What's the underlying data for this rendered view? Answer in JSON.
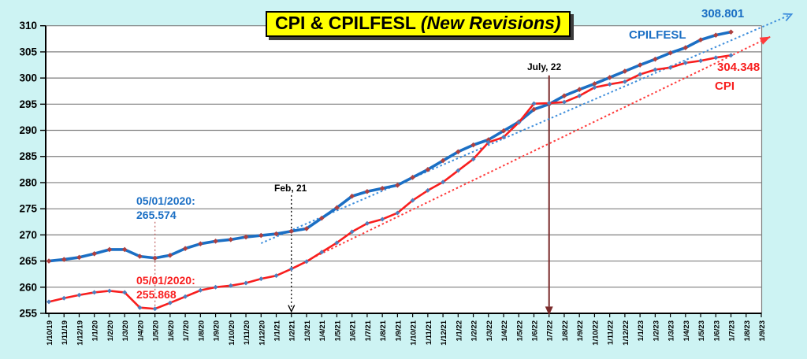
{
  "background_color": "#CDF3F3",
  "title": {
    "prefix": "CPI & CPILFESL ",
    "italic": "(New Revisions)",
    "suffix": "",
    "bg_color": "#FFFF00",
    "text_color": "#000000"
  },
  "labels": {
    "cpilfesl_series_label": "CPILFESL",
    "cpilfesl_end_value": "308.801",
    "cpi_series_label": "CPI",
    "cpi_end_value": "304.348",
    "blue_annotation_line1": "05/01/2020:",
    "blue_annotation_line2": "265.574",
    "red_annotation_line1": "05/01/2020:",
    "red_annotation_line2": "255.868",
    "feb21": "Feb, 21",
    "july22": "July, 22"
  },
  "chart_data": {
    "type": "line",
    "title": "CPI & CPILFESL (New Revisions)",
    "ylim": [
      255,
      310
    ],
    "y_ticks": [
      255,
      260,
      265,
      270,
      275,
      280,
      285,
      290,
      295,
      300,
      305,
      310
    ],
    "grid": true,
    "plot_bg": "#FFFFFF",
    "grid_color": "#7f7f7f",
    "axis_color": "#000000",
    "x_tick_labels": [
      "1/10/19",
      "1/11/19",
      "1/12/19",
      "1/1/20",
      "1/2/20",
      "1/3/20",
      "1/4/20",
      "1/5/20",
      "1/6/20",
      "1/7/20",
      "1/8/20",
      "1/9/20",
      "1/10/20",
      "1/11/20",
      "1/12/20",
      "1/1/21",
      "1/2/21",
      "1/3/21",
      "1/4/21",
      "1/5/21",
      "1/6/21",
      "1/7/21",
      "1/8/21",
      "1/9/21",
      "1/10/21",
      "1/11/21",
      "1/12/21",
      "1/1/22",
      "1/2/22",
      "1/3/22",
      "1/4/22",
      "1/5/22",
      "1/6/22",
      "1/7/22",
      "1/8/22",
      "1/9/22",
      "1/10/22",
      "1/11/22",
      "1/12/22",
      "1/1/23",
      "1/2/23",
      "1/3/23",
      "1/4/23",
      "1/5/23",
      "1/6/23",
      "1/7/23",
      "1/8/23",
      "1/9/23"
    ],
    "series": [
      {
        "name": "CPILFESL",
        "color": "#1B6FC4",
        "line_width": 3.6,
        "marker_color": "#AE4040",
        "marker_size": 3.3,
        "values": [
          265.0,
          265.3,
          265.7,
          266.4,
          267.2,
          267.2,
          265.9,
          265.574,
          266.1,
          267.4,
          268.3,
          268.8,
          269.1,
          269.6,
          269.9,
          270.2,
          270.7,
          271.2,
          273.2,
          275.2,
          277.4,
          278.3,
          278.9,
          279.5,
          281.0,
          282.5,
          284.2,
          285.9,
          287.2,
          288.2,
          289.9,
          291.6,
          294.0,
          295.0,
          296.6,
          297.8,
          298.9,
          300.1,
          301.3,
          302.5,
          303.6,
          304.8,
          305.8,
          307.3,
          308.2,
          308.801
        ]
      },
      {
        "name": "CPI",
        "color": "#F81E1E",
        "line_width": 2.6,
        "marker_color": "#4E7FBE",
        "marker_size": 3.0,
        "values": [
          257.2,
          257.9,
          258.5,
          259.0,
          259.3,
          259.0,
          256.1,
          255.868,
          257.0,
          258.2,
          259.4,
          260.0,
          260.3,
          260.8,
          261.6,
          262.2,
          263.5,
          264.9,
          266.7,
          268.5,
          270.6,
          272.2,
          273.0,
          274.2,
          276.6,
          278.5,
          280.1,
          282.3,
          284.5,
          287.7,
          288.7,
          291.5,
          295.1,
          295.2,
          295.4,
          296.6,
          298.2,
          298.8,
          299.3,
          300.7,
          301.6,
          302.0,
          302.9,
          303.3,
          303.9,
          304.348
        ]
      }
    ],
    "trendlines": [
      {
        "name": "cpilfesl-trend",
        "color": "#3E8EDC",
        "start_index": 14.0,
        "start_value": 268.4,
        "end_index": 49.0,
        "end_value": 312.2,
        "arrow": "open"
      },
      {
        "name": "cpi-trend",
        "color": "#FF3B3B",
        "start_index": 17.6,
        "start_value": 265.9,
        "end_index": 47.6,
        "end_value": 307.9,
        "arrow": "filled"
      }
    ],
    "vertical_markers": [
      {
        "name": "may-2020-minimum-line",
        "x_index": 7,
        "top_value": 272.5,
        "bottom_value": 255.9,
        "style": "dotted",
        "color": "#C46A6A",
        "arrow": "none"
      },
      {
        "name": "feb-21-arrow",
        "x_index": 16,
        "top_value": 277.6,
        "bottom_value": 256.1,
        "style": "dotted",
        "color": "#000000",
        "arrow": "open"
      },
      {
        "name": "july-22-arrow",
        "x_index": 33,
        "top_value": 300.5,
        "bottom_value": 256.3,
        "style": "solid",
        "color": "#7B2B2B",
        "arrow": "filled"
      }
    ],
    "annotations": [
      {
        "text": "308.801",
        "color": "#1B6FC4"
      },
      {
        "text": "CPILFESL",
        "color": "#1B6FC4"
      },
      {
        "text": "304.348",
        "color": "#F81E1E"
      },
      {
        "text": "CPI",
        "color": "#F81E1E"
      },
      {
        "text": "05/01/2020: 265.574",
        "color": "#1B6FC4"
      },
      {
        "text": "05/01/2020: 255.868",
        "color": "#F81E1E"
      },
      {
        "text": "Feb, 21",
        "color": "#000000"
      },
      {
        "text": "July, 22",
        "color": "#000000"
      }
    ]
  }
}
